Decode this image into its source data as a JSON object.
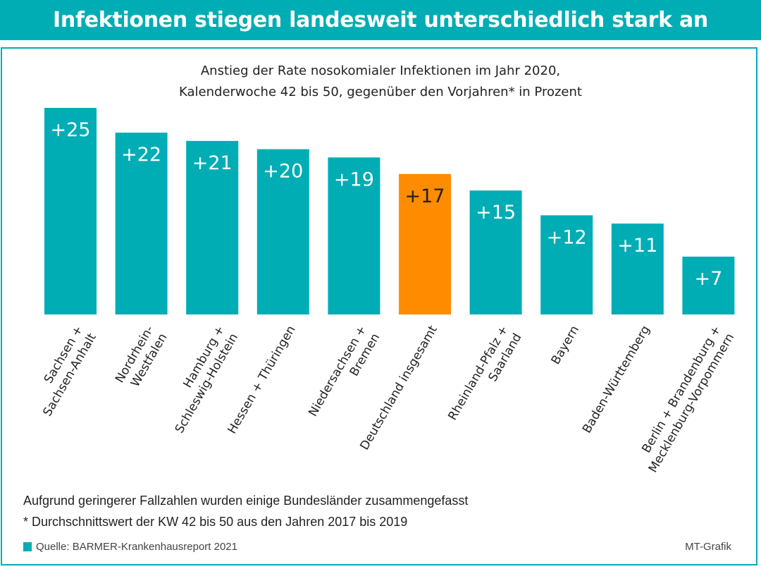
{
  "header": {
    "title": "Infektionen stiegen landesweit unterschiedlich stark an"
  },
  "subtitle": {
    "line1": "Anstieg der Rate nosokomialer Infektionen im Jahr 2020,",
    "line2": "Kalenderwoche 42 bis 50, gegenüber den Vorjahren* in Prozent"
  },
  "colors": {
    "primary": "#00adb5",
    "highlight": "#ff8c00",
    "label_dark": "#231f20",
    "label_light": "#ffffff"
  },
  "chart_data": {
    "type": "bar",
    "title": "Anstieg der Rate nosokomialer Infektionen im Jahr 2020, Kalenderwoche 42 bis 50, gegenüber den Vorjahren* in Prozent",
    "xlabel": "",
    "ylabel": "",
    "ylim": [
      0,
      25
    ],
    "grid": false,
    "legend": "none",
    "categories": [
      [
        "Sachsen +",
        "Sachsen-Anhalt"
      ],
      [
        "Nordrhein-",
        "Westfalen"
      ],
      [
        "Hamburg +",
        "Schleswig-Holstein"
      ],
      [
        "Hessen + Thüringen"
      ],
      [
        "Niedersachsen +",
        "Bremen"
      ],
      [
        "Deutschland insgesamt"
      ],
      [
        "Rheinland-Pfalz +",
        "Saarland"
      ],
      [
        "Bayern"
      ],
      [
        "Baden-Württemberg"
      ],
      [
        "Berlin + Brandenburg +",
        "Mecklenburg-Vorpommern"
      ]
    ],
    "values": [
      25,
      22,
      21,
      20,
      19,
      17,
      15,
      12,
      11,
      7
    ],
    "data_labels": [
      "+25",
      "+22",
      "+21",
      "+20",
      "+19",
      "+17",
      "+15",
      "+12",
      "+11",
      "+7"
    ],
    "highlight_index": 5
  },
  "notes": {
    "line1": "Aufgrund geringerer Fallzahlen wurden einige Bundesländer zusammengefasst",
    "line2": "* Durchschnittswert der KW 42 bis 50 aus den Jahren 2017 bis 2019"
  },
  "footer": {
    "source": "Quelle: BARMER-Krankenhausreport 2021",
    "credit": "MT-Grafik"
  }
}
